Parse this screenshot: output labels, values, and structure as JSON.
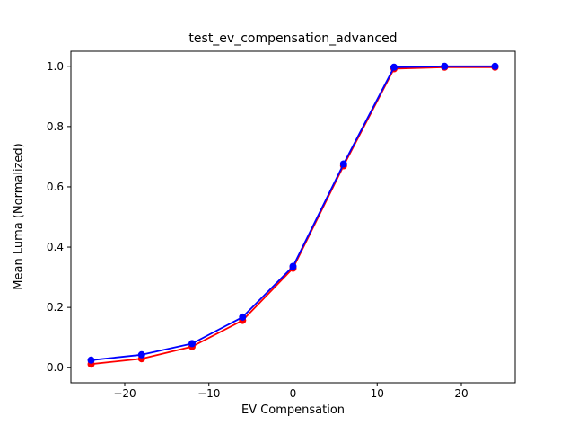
{
  "chart_data": {
    "type": "line",
    "title": "test_ev_compensation_advanced",
    "xlabel": "EV Compensation",
    "ylabel": "Mean Luma (Normalized)",
    "x": [
      -24,
      -18,
      -12,
      -6,
      0,
      6,
      12,
      18,
      24
    ],
    "series": [
      {
        "name": "red-series",
        "color": "#ff0000",
        "marker": "circle",
        "values": [
          0.012,
          0.03,
          0.07,
          0.157,
          0.33,
          0.67,
          0.992,
          0.997,
          0.997
        ]
      },
      {
        "name": "blue-series",
        "color": "#0000ff",
        "marker": "circle",
        "values": [
          0.025,
          0.043,
          0.08,
          0.168,
          0.336,
          0.676,
          0.997,
          1.0,
          1.0
        ]
      }
    ],
    "xticks": [
      -20,
      -10,
      0,
      10,
      20
    ],
    "yticks": [
      0.0,
      0.2,
      0.4,
      0.6,
      0.8,
      1.0
    ],
    "xlim": [
      -26.4,
      26.4
    ],
    "ylim": [
      -0.05,
      1.05
    ],
    "grid": false,
    "legend": "none",
    "axes_color": "#000000",
    "background_color": "#ffffff"
  }
}
